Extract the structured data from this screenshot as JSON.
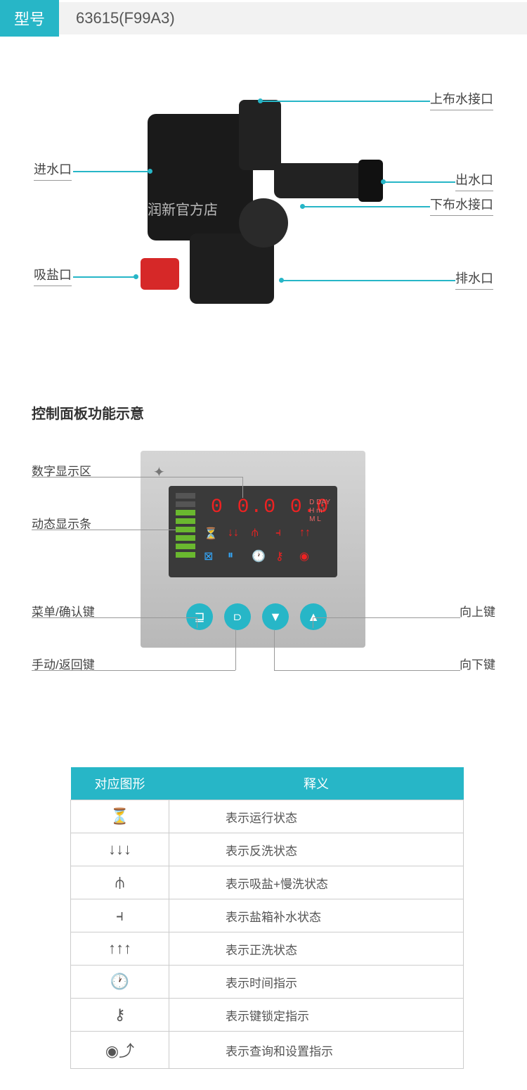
{
  "header": {
    "tag": "型号",
    "value": "63615(F99A3)"
  },
  "product_labels": {
    "left1": "进水口",
    "left2": "吸盐口",
    "right1": "上布水接口",
    "right2": "出水口",
    "right3": "下布水接口",
    "right4": "排水口"
  },
  "watermark": "润新官方店",
  "section2_title": "控制面板功能示意",
  "panel_labels": {
    "l1": "数字显示区",
    "l2": "动态显示条",
    "l3": "菜单/确认键",
    "l4": "手动/返回键",
    "r1": "向上键",
    "r2": "向下键"
  },
  "panel_display": {
    "segment": "0 0.0 0.0",
    "units": "D DAY\nH m³\nM L"
  },
  "table": {
    "headers": [
      "对应图形",
      "释义"
    ],
    "rows": [
      {
        "icon": "⏳",
        "desc": "表示运行状态"
      },
      {
        "icon": "↓↓↓",
        "desc": "表示反洗状态"
      },
      {
        "icon": "⫛",
        "desc": "表示吸盐+慢洗状态"
      },
      {
        "icon": "⫞",
        "desc": "表示盐箱补水状态"
      },
      {
        "icon": "↑↑↑",
        "desc": "表示正洗状态"
      },
      {
        "icon": "🕐",
        "desc": "表示时间指示"
      },
      {
        "icon": "⚷",
        "desc": "表示键锁定指示"
      },
      {
        "icon": "◉⤴",
        "desc": "表示查询和设置指示"
      }
    ]
  },
  "colors": {
    "accent": "#27b6c7",
    "led_green": "#6ab82f",
    "led_red": "#e22",
    "panel_gray": "#c8c8c8"
  }
}
